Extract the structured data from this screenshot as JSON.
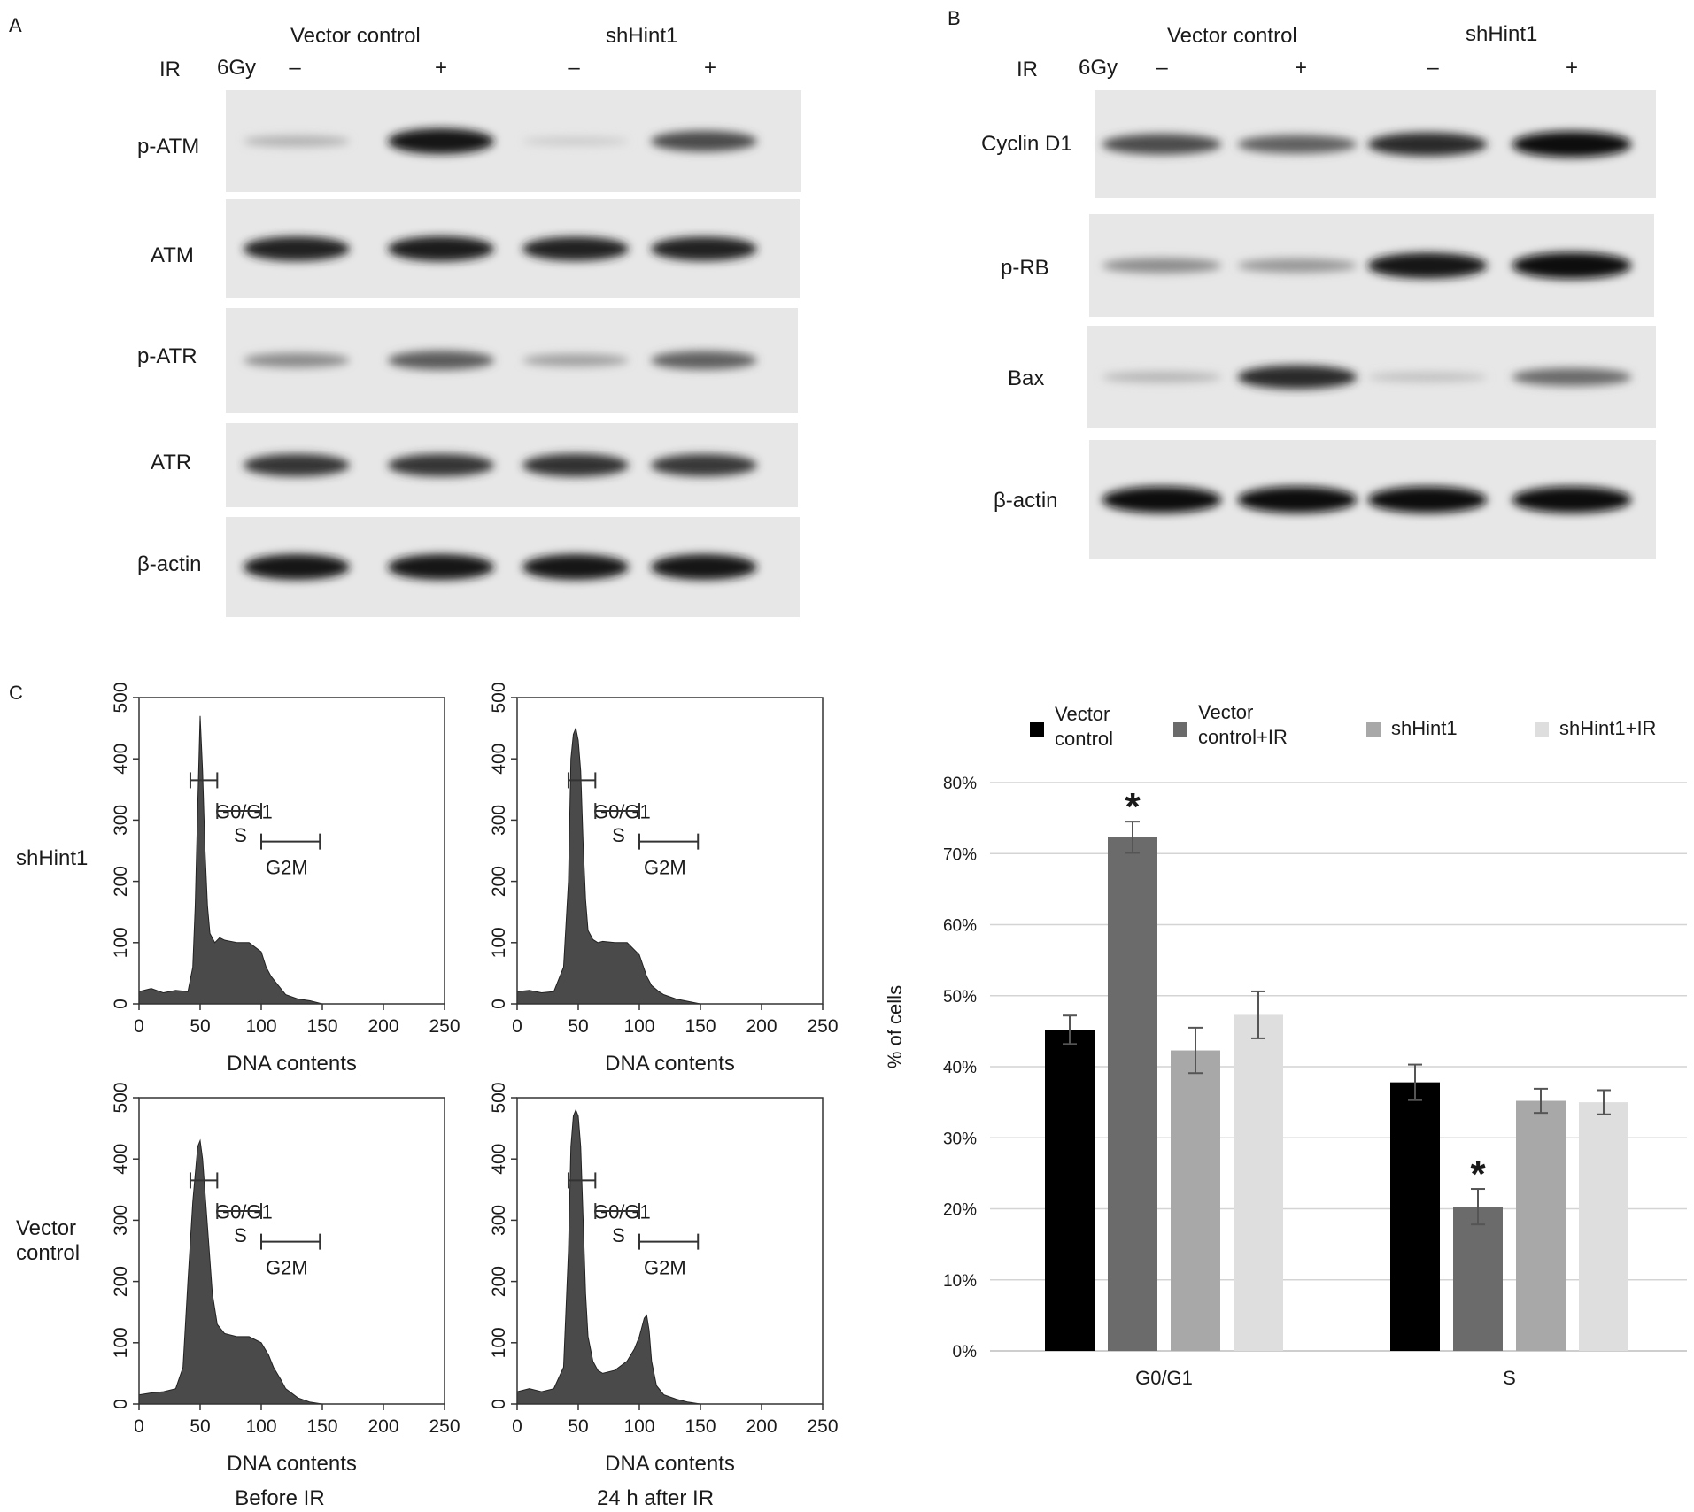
{
  "panelA": {
    "letter": "A",
    "ir_label": "IR",
    "dose": "6Gy",
    "groups": [
      "Vector control",
      "shHint1"
    ],
    "lane_signs": [
      "–",
      "+",
      "–",
      "+"
    ],
    "blots": [
      {
        "name": "p-ATM",
        "bands": [
          0.22,
          0.95,
          0.1,
          0.7
        ]
      },
      {
        "name": "ATM",
        "bands": [
          0.9,
          0.92,
          0.88,
          0.88
        ]
      },
      {
        "name": "p-ATR",
        "bands": [
          0.4,
          0.62,
          0.3,
          0.6
        ]
      },
      {
        "name": "ATR",
        "bands": [
          0.8,
          0.8,
          0.82,
          0.78
        ]
      },
      {
        "name": "β-actin",
        "bands": [
          0.95,
          0.95,
          0.95,
          0.95
        ]
      }
    ]
  },
  "panelB": {
    "letter": "B",
    "ir_label": "IR",
    "dose": "6Gy",
    "groups": [
      "Vector control",
      "shHint1"
    ],
    "lane_signs": [
      "–",
      "+",
      "–",
      "+"
    ],
    "blots": [
      {
        "name": "Cyclin D1",
        "bands": [
          0.7,
          0.6,
          0.85,
          0.98
        ]
      },
      {
        "name": "p-RB",
        "bands": [
          0.4,
          0.35,
          0.95,
          1.0
        ]
      },
      {
        "name": "Bax",
        "bands": [
          0.2,
          0.85,
          0.15,
          0.55
        ]
      },
      {
        "name": "β-actin",
        "bands": [
          1.0,
          1.0,
          1.0,
          1.0
        ]
      }
    ]
  },
  "panelC": {
    "letter": "C",
    "row_labels": [
      "shHint1",
      "Vector\ncontrol"
    ],
    "column_labels": [
      "Before IR",
      "24 h after IR"
    ],
    "histogram_xlabel": "DNA contents",
    "gate_labels": [
      "G0/G1",
      "S",
      "G2M"
    ]
  },
  "chart_data": [
    {
      "type": "area",
      "panel": "C-shHint1-before",
      "xlabel": "DNA contents",
      "xlim": [
        0,
        250
      ],
      "ylim": [
        0,
        500
      ],
      "xticks": [
        0,
        50,
        100,
        150,
        200,
        250
      ],
      "yticks": [
        0,
        100,
        200,
        300,
        400,
        500
      ],
      "x": [
        0,
        10,
        20,
        30,
        40,
        44,
        46,
        48,
        50,
        52,
        54,
        56,
        58,
        62,
        66,
        70,
        80,
        90,
        100,
        104,
        108,
        112,
        116,
        120,
        130,
        140,
        150
      ],
      "y": [
        20,
        25,
        18,
        22,
        20,
        60,
        160,
        320,
        470,
        380,
        250,
        160,
        115,
        100,
        108,
        104,
        100,
        100,
        85,
        60,
        45,
        35,
        25,
        15,
        8,
        5,
        0
      ],
      "gates": [
        {
          "label": "G0/G1",
          "range": [
            42,
            64
          ]
        },
        {
          "label": "S",
          "range": [
            64,
            100
          ]
        },
        {
          "label": "G2M",
          "range": [
            100,
            148
          ]
        }
      ]
    },
    {
      "type": "area",
      "panel": "C-shHint1-after",
      "xlabel": "DNA contents",
      "xlim": [
        0,
        250
      ],
      "ylim": [
        0,
        500
      ],
      "xticks": [
        0,
        50,
        100,
        150,
        200,
        250
      ],
      "yticks": [
        0,
        100,
        200,
        300,
        400,
        500
      ],
      "x": [
        0,
        10,
        20,
        30,
        38,
        42,
        44,
        46,
        48,
        50,
        52,
        54,
        56,
        58,
        62,
        66,
        70,
        80,
        90,
        100,
        106,
        110,
        116,
        120,
        130,
        140,
        150
      ],
      "y": [
        20,
        22,
        18,
        20,
        60,
        200,
        400,
        440,
        450,
        430,
        380,
        260,
        170,
        120,
        105,
        100,
        102,
        100,
        100,
        80,
        45,
        30,
        20,
        15,
        8,
        4,
        0
      ],
      "gates": [
        {
          "label": "G0/G1",
          "range": [
            42,
            64
          ]
        },
        {
          "label": "S",
          "range": [
            64,
            100
          ]
        },
        {
          "label": "G2M",
          "range": [
            100,
            148
          ]
        }
      ]
    },
    {
      "type": "area",
      "panel": "C-vector-before",
      "xlabel": "DNA contents",
      "xlim": [
        0,
        250
      ],
      "ylim": [
        0,
        500
      ],
      "xticks": [
        0,
        50,
        100,
        150,
        200,
        250
      ],
      "yticks": [
        0,
        100,
        200,
        300,
        400,
        500
      ],
      "x": [
        0,
        10,
        20,
        30,
        36,
        40,
        44,
        48,
        50,
        52,
        56,
        60,
        64,
        70,
        80,
        90,
        100,
        106,
        110,
        116,
        120,
        130,
        140,
        150
      ],
      "y": [
        15,
        18,
        20,
        25,
        60,
        200,
        330,
        420,
        430,
        400,
        290,
        180,
        130,
        115,
        110,
        110,
        100,
        80,
        60,
        40,
        25,
        10,
        3,
        0
      ],
      "gates": [
        {
          "label": "G0/G1",
          "range": [
            42,
            64
          ]
        },
        {
          "label": "S",
          "range": [
            64,
            100
          ]
        },
        {
          "label": "G2M",
          "range": [
            100,
            148
          ]
        }
      ]
    },
    {
      "type": "area",
      "panel": "C-vector-after",
      "xlabel": "DNA contents",
      "xlim": [
        0,
        250
      ],
      "ylim": [
        0,
        500
      ],
      "xticks": [
        0,
        50,
        100,
        150,
        200,
        250
      ],
      "yticks": [
        0,
        100,
        200,
        300,
        400,
        500
      ],
      "x": [
        0,
        10,
        20,
        30,
        38,
        42,
        44,
        46,
        48,
        50,
        52,
        54,
        56,
        58,
        62,
        66,
        70,
        80,
        90,
        96,
        100,
        104,
        106,
        108,
        110,
        114,
        120,
        130,
        140,
        150
      ],
      "y": [
        20,
        25,
        20,
        25,
        60,
        250,
        420,
        470,
        480,
        470,
        420,
        300,
        180,
        110,
        70,
        55,
        50,
        55,
        70,
        90,
        110,
        140,
        145,
        120,
        70,
        30,
        15,
        8,
        3,
        0
      ],
      "gates": [
        {
          "label": "G0/G1",
          "range": [
            42,
            64
          ]
        },
        {
          "label": "S",
          "range": [
            64,
            100
          ]
        },
        {
          "label": "G2M",
          "range": [
            100,
            148
          ]
        }
      ]
    },
    {
      "type": "bar",
      "panel": "C-bar",
      "categories": [
        "G0/G1",
        "S"
      ],
      "ylabel": "% of cells",
      "ylim": [
        0,
        80
      ],
      "yticks": [
        "0%",
        "10%",
        "20%",
        "30%",
        "40%",
        "50%",
        "60%",
        "70%",
        "80%"
      ],
      "grid": true,
      "legend_position": "top",
      "series": [
        {
          "name": "Vector control",
          "color": "#000000",
          "values": [
            45.2,
            37.8
          ],
          "errors": [
            2.0,
            2.5
          ]
        },
        {
          "name": "Vector control+IR",
          "color": "#6b6b6b",
          "values": [
            72.3,
            20.3
          ],
          "errors": [
            2.2,
            2.5
          ]
        },
        {
          "name": "shHint1",
          "color": "#a8a8a8",
          "values": [
            42.3,
            35.2
          ],
          "errors": [
            3.2,
            1.7
          ]
        },
        {
          "name": "shHint1+IR",
          "color": "#dedede",
          "values": [
            47.3,
            35.0
          ],
          "errors": [
            3.3,
            1.7
          ]
        }
      ],
      "significance": [
        {
          "category": "G0/G1",
          "series": "Vector control+IR",
          "mark": "*"
        },
        {
          "category": "S",
          "series": "Vector control+IR",
          "mark": "*"
        }
      ]
    }
  ]
}
